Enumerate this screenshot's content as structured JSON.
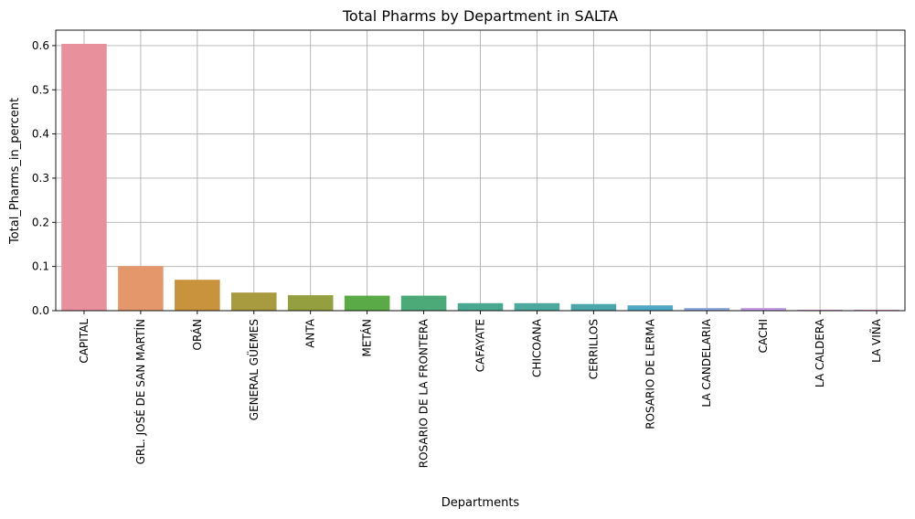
{
  "chart_data": {
    "type": "bar",
    "title": "Total Pharms by Department in SALTA",
    "xlabel": "Departments",
    "ylabel": "Total_Pharms_in_percent",
    "ylim": [
      0,
      0.635
    ],
    "yticks": [
      0.0,
      0.1,
      0.2,
      0.3,
      0.4,
      0.5,
      0.6
    ],
    "grid": true,
    "legend": "none",
    "categories": [
      "CAPITAL",
      "GRL. JOSÉ DE SAN MARTÍN",
      "ORÁN",
      "GENERAL GÜEMES",
      "ANTA",
      "METÁN",
      "ROSARIO DE LA FRONTERA",
      "CAFAYATE",
      "CHICOANA",
      "CERRILLOS",
      "ROSARIO DE LERMA",
      "LA CANDELARIA",
      "CACHI",
      "LA CALDERA",
      "LA VIÑA"
    ],
    "values": [
      0.604,
      0.101,
      0.07,
      0.041,
      0.035,
      0.034,
      0.034,
      0.017,
      0.017,
      0.015,
      0.012,
      0.006,
      0.006,
      0.002,
      0.002
    ],
    "colors": [
      "#e8919d",
      "#e3976a",
      "#c9933e",
      "#a89a3f",
      "#94a03f",
      "#5aaa47",
      "#4baa78",
      "#49a890",
      "#4aa89d",
      "#4ba6aa",
      "#4ea7c5",
      "#8ea8e0",
      "#c39ce4",
      "#d98fdf",
      "#e48fc2"
    ]
  }
}
